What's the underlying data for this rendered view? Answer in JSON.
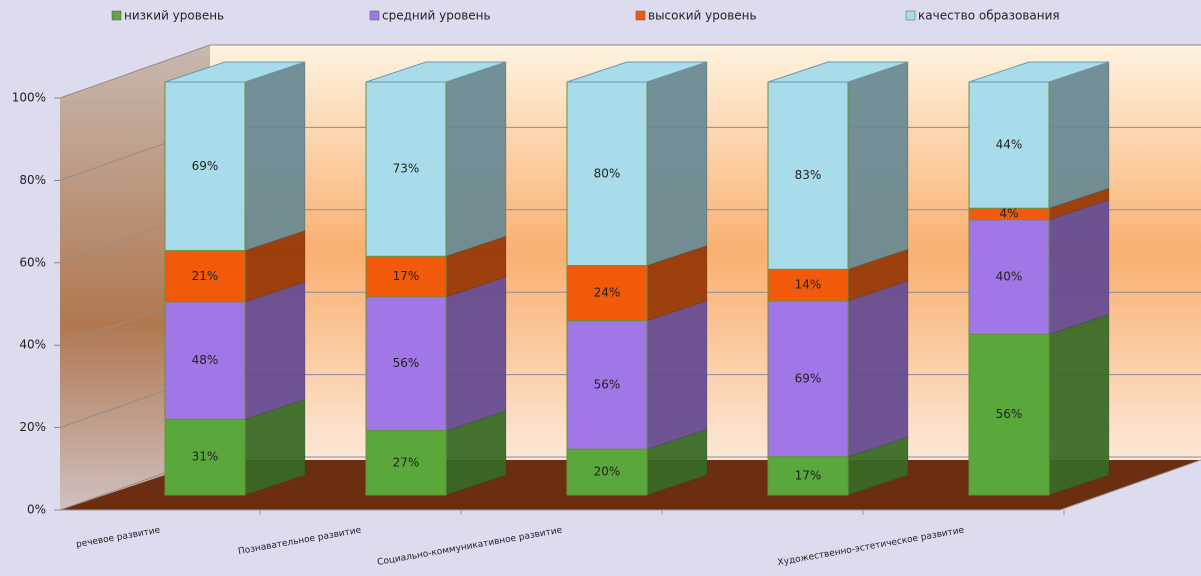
{
  "chart_data": {
    "type": "bar",
    "stacking": "percent",
    "categories": [
      "речевое развитие",
      "Познавательное развитие",
      "Социально-коммуникативное развитие",
      null,
      "Художественно-эстетическое развитие"
    ],
    "series": [
      {
        "name": "низкий уровень",
        "color": "#5aa83c",
        "values": [
          31,
          27,
          20,
          17,
          56
        ],
        "value_labels": [
          "31%",
          "27%",
          "20%",
          "17%",
          "56%"
        ]
      },
      {
        "name": "средний уровень",
        "color": "#a177e8",
        "values": [
          48,
          56,
          56,
          69,
          40
        ],
        "value_labels": [
          "48%",
          "56%",
          "56%",
          "69%",
          "40%"
        ]
      },
      {
        "name": "высокий уровень",
        "color": "#f05a0a",
        "values": [
          21,
          17,
          24,
          14,
          4
        ],
        "value_labels": [
          "21%",
          "17%",
          "24%",
          "14%",
          "4%"
        ]
      },
      {
        "name": "качество образования",
        "color": "#a9dcea",
        "values": [
          69,
          73,
          80,
          83,
          44
        ],
        "value_labels": [
          "69%",
          "73%",
          "80%",
          "83%",
          "44%"
        ]
      }
    ],
    "ylim": [
      0,
      100
    ],
    "yticks": [
      {
        "value": 0,
        "label": "0%"
      },
      {
        "value": 20,
        "label": "20%"
      },
      {
        "value": 40,
        "label": "40%"
      },
      {
        "value": 60,
        "label": "60%"
      },
      {
        "value": 80,
        "label": "80%"
      },
      {
        "value": 100,
        "label": "100%"
      }
    ],
    "grid": true,
    "legend": "top"
  }
}
